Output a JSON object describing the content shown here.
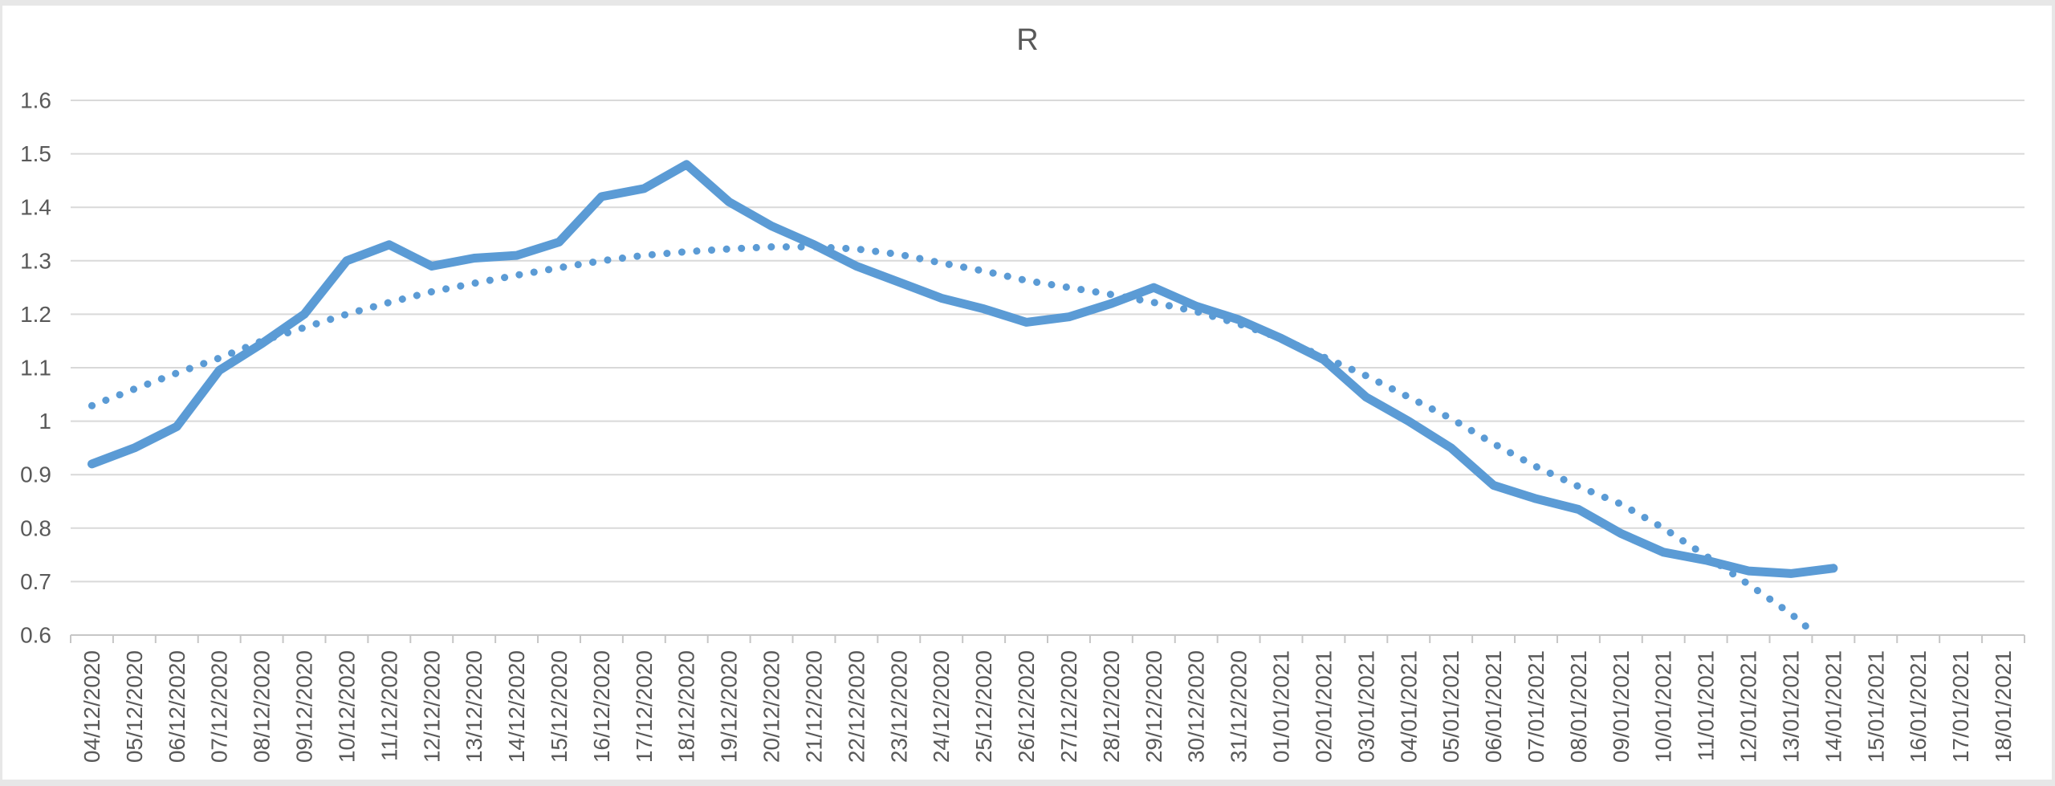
{
  "window": {
    "edge_color": "#e7e7e7",
    "background": "#ffffff"
  },
  "chart_data": {
    "type": "line",
    "title": "R",
    "title_color": "#595959",
    "series_color": "#5b9bd5",
    "gridline_color": "#d9d9d9",
    "axis_color": "#c6c6c6",
    "label_color": "#595959",
    "grid": "horizontal",
    "legend_position": "none",
    "x_tick_label_rotation": 90,
    "x_categories": [
      "04/12/2020",
      "05/12/2020",
      "06/12/2020",
      "07/12/2020",
      "08/12/2020",
      "09/12/2020",
      "10/12/2020",
      "11/12/2020",
      "12/12/2020",
      "13/12/2020",
      "14/12/2020",
      "15/12/2020",
      "16/12/2020",
      "17/12/2020",
      "18/12/2020",
      "19/12/2020",
      "20/12/2020",
      "21/12/2020",
      "22/12/2020",
      "23/12/2020",
      "24/12/2020",
      "25/12/2020",
      "26/12/2020",
      "27/12/2020",
      "28/12/2020",
      "29/12/2020",
      "30/12/2020",
      "31/12/2020",
      "01/01/2021",
      "02/01/2021",
      "03/01/2021",
      "04/01/2021",
      "05/01/2021",
      "06/01/2021",
      "07/01/2021",
      "08/01/2021",
      "09/01/2021",
      "10/01/2021",
      "11/01/2021",
      "12/01/2021",
      "13/01/2021",
      "14/01/2021",
      "15/01/2021",
      "16/01/2021",
      "17/01/2021",
      "18/01/2021"
    ],
    "y_axis": {
      "min": 0.6,
      "max": 1.6,
      "tick_step": 0.1,
      "ticks": [
        {
          "label": "0.6",
          "value": 0.6
        },
        {
          "label": "0.7",
          "value": 0.7
        },
        {
          "label": "0.8",
          "value": 0.8
        },
        {
          "label": "0.9",
          "value": 0.9
        },
        {
          "label": "1",
          "value": 1.0
        },
        {
          "label": "1.1",
          "value": 1.1
        },
        {
          "label": "1.2",
          "value": 1.2
        },
        {
          "label": "1.3",
          "value": 1.3
        },
        {
          "label": "1.4",
          "value": 1.4
        },
        {
          "label": "1.5",
          "value": 1.5
        },
        {
          "label": "1.6",
          "value": 1.6
        }
      ]
    },
    "series": [
      {
        "name": "R",
        "style": "solid",
        "values": [
          0.92,
          0.95,
          0.99,
          1.095,
          1.145,
          1.2,
          1.3,
          1.33,
          1.29,
          1.305,
          1.31,
          1.335,
          1.42,
          1.435,
          1.48,
          1.41,
          1.365,
          1.33,
          1.29,
          1.26,
          1.23,
          1.21,
          1.185,
          1.195,
          1.22,
          1.25,
          1.215,
          1.19,
          1.155,
          1.115,
          1.045,
          1.0,
          0.95,
          0.88,
          0.855,
          0.835,
          0.79,
          0.755,
          0.74,
          0.72,
          0.715,
          0.725,
          null,
          null,
          null,
          null
        ]
      },
      {
        "name": "polynomial-trendline",
        "style": "dotted",
        "points": [
          [
            0,
            1.029
          ],
          [
            1,
            1.06
          ],
          [
            2,
            1.09
          ],
          [
            3,
            1.118
          ],
          [
            4,
            1.15
          ],
          [
            5,
            1.175
          ],
          [
            6,
            1.2
          ],
          [
            7,
            1.222
          ],
          [
            8,
            1.242
          ],
          [
            9,
            1.258
          ],
          [
            10,
            1.273
          ],
          [
            11,
            1.287
          ],
          [
            12,
            1.3
          ],
          [
            13,
            1.31
          ],
          [
            14,
            1.317
          ],
          [
            15,
            1.322
          ],
          [
            16,
            1.326
          ],
          [
            17,
            1.326
          ],
          [
            18,
            1.322
          ],
          [
            19,
            1.312
          ],
          [
            20,
            1.296
          ],
          [
            21,
            1.281
          ],
          [
            22,
            1.263
          ],
          [
            23,
            1.25
          ],
          [
            24,
            1.237
          ],
          [
            25,
            1.222
          ],
          [
            26,
            1.205
          ],
          [
            27,
            1.182
          ],
          [
            28,
            1.155
          ],
          [
            29,
            1.12
          ],
          [
            30,
            1.085
          ],
          [
            31,
            1.045
          ],
          [
            32,
            1.005
          ],
          [
            33,
            0.958
          ],
          [
            34,
            0.915
          ],
          [
            35,
            0.878
          ],
          [
            36,
            0.845
          ],
          [
            37,
            0.8
          ],
          [
            38,
            0.748
          ],
          [
            39,
            0.695
          ],
          [
            40,
            0.64
          ],
          [
            40.6,
            0.6
          ]
        ]
      }
    ]
  }
}
